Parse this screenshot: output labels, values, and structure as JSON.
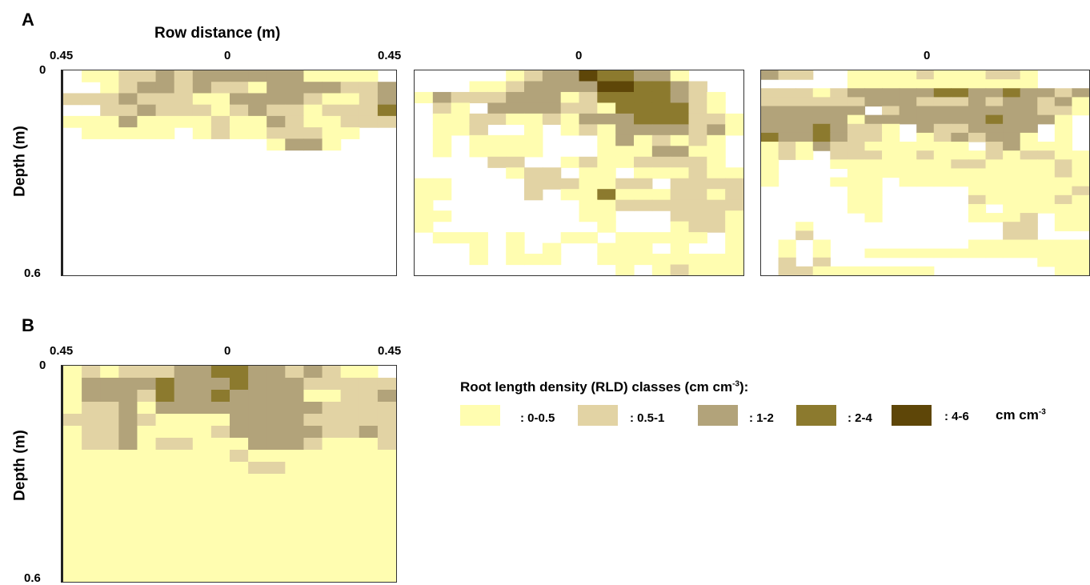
{
  "figure": {
    "panel_a_label": "A",
    "panel_b_label": "B",
    "row_distance_label": "Row distance (m)",
    "depth_label": "Depth (m)",
    "x_ticks_full": [
      "0.45",
      "0",
      "0.45"
    ],
    "x_tick_center": "0",
    "y_tick_top": "0",
    "y_tick_bottom": "0.6"
  },
  "legend": {
    "title_main": "Root length density (RLD) classes (cm cm",
    "title_sup": "-3",
    "title_end": "):",
    "unit_main": "cm cm",
    "unit_sup": "-3",
    "classes": [
      {
        "label": ": 0-0.5",
        "color": "#FFFDB0"
      },
      {
        "label": ": 0.5-1",
        "color": "#E2D3A4"
      },
      {
        "label": ": 1-2",
        "color": "#B2A37A"
      },
      {
        "label": ": 2-4",
        "color": "#8C7A2E"
      },
      {
        "label": ": 4-6",
        "color": "#5E4608"
      }
    ]
  },
  "chart_data": [
    {
      "type": "heatmap",
      "panel": "A",
      "xlabel": "Row distance (m)",
      "ylabel": "Depth (m)",
      "x_ticks": [
        "0.45",
        "0",
        "0.45"
      ],
      "y_ticks": [
        "0",
        "0.6"
      ],
      "class_legend": [
        "empty",
        "0-0.5",
        "0.5-1",
        "1-2",
        "2-4",
        "4-6"
      ],
      "grid": [
        "011223233333311110",
        "001233232213333223",
        "222322211333321123",
        "002232221232212224",
        "111311112113211222",
        "011111012112221100",
        "000000000001331000",
        "000000000000000000",
        "000000000000000000",
        "000000000000000000",
        "000000000000000000",
        "000000000000000000",
        "000000000000000000",
        "000000000000000000",
        "000000000000000000",
        "000000000000000000",
        "000000000000000000",
        "000000000000000000"
      ]
    },
    {
      "type": "heatmap",
      "panel": "A",
      "xlabel": "",
      "ylabel": "",
      "x_ticks": [
        "0"
      ],
      "y_ticks": [],
      "class_legend": [
        "empty",
        "0-0.5",
        "0.5-1",
        "1-2",
        "2-4",
        "4-6"
      ],
      "grid": [
        "000001233544331000",
        "000112333355443200",
        "132223331244443210",
        "021033332214444210",
        "011221121333444221",
        "011200101213333231",
        "010111100013121210",
        "010111100011133110",
        "000022001211222210",
        "000001220110111211",
        "110000222112202222",
        "110000201141112212",
        "100000000112222222",
        "110000000110002221",
        "100000000010001221",
        "011101001101111101",
        "000101010011101001",
        "000101110011111111",
        "000000000001012111"
      ]
    },
    {
      "type": "heatmap",
      "panel": "A",
      "xlabel": "",
      "ylabel": "",
      "x_ticks": [
        "0"
      ],
      "y_ticks": [],
      "class_legend": [
        "empty",
        "0-0.5",
        "0.5-1",
        "1-2",
        "2-4",
        "4-6"
      ],
      "grid": [
        "3220011112111221000",
        "0000011111111111000",
        "2221233333443343323",
        "2222223332223233231",
        "3333330233333333221",
        "3333313333333433310",
        "3334322103223333010",
        "4334322101232331010",
        "1213221111110231110",
        "1210222112111212211",
        "1000111111122111121",
        "1000011111111111121",
        "1000111011111111111",
        "0000011000001111112",
        "0000011000002111121",
        "0000011000001011111",
        "0000001000001112011",
        "0010000000000022011",
        "0020000000000022000",
        "0101000000001111111",
        "0101001111111111111",
        "0202000000000000111",
        "0221111111000000011"
      ]
    },
    {
      "type": "heatmap",
      "panel": "B",
      "xlabel": "",
      "ylabel": "Depth (m)",
      "x_ticks": [
        "0.45",
        "0",
        "0.45"
      ],
      "y_ticks": [
        "0",
        "0.6"
      ],
      "class_legend": [
        "empty",
        "0-0.5",
        "0.5-1",
        "1-2",
        "2-4",
        "4-6"
      ],
      "grid": [
        "121222334433232110",
        "133334333433322222",
        "133324334333311223",
        "122313333333332222",
        "222321111333322222",
        "122311112333332232",
        "122312211133321112",
        "111111111211111111",
        "111111111122111111",
        "111111111111111111",
        "111111111111111111",
        "111111111111111111",
        "111111111111111111",
        "111111111111111111",
        "111111111111111111",
        "111111111111111111",
        "111111111111111111",
        "111111111111111111"
      ]
    }
  ]
}
